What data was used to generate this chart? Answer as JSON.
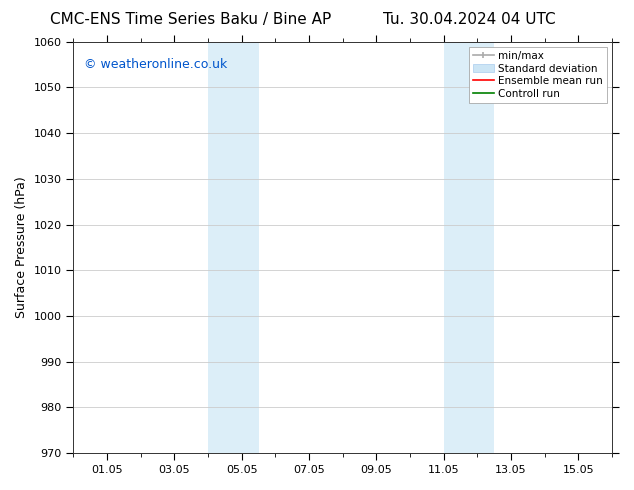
{
  "title_left": "CMC-ENS Time Series Baku / Bine AP",
  "title_right": "Tu. 30.04.2024 04 UTC",
  "ylabel": "Surface Pressure (hPa)",
  "ylim": [
    970,
    1060
  ],
  "yticks": [
    970,
    980,
    990,
    1000,
    1010,
    1020,
    1030,
    1040,
    1050,
    1060
  ],
  "xtick_labels": [
    "01.05",
    "03.05",
    "05.05",
    "07.05",
    "09.05",
    "11.05",
    "13.05",
    "15.05"
  ],
  "xtick_positions": [
    1,
    3,
    5,
    7,
    9,
    11,
    13,
    15
  ],
  "xlim": [
    0,
    16
  ],
  "shaded_bands": [
    {
      "x_start": 4.0,
      "x_end": 5.5,
      "color": "#dceef8"
    },
    {
      "x_start": 11.0,
      "x_end": 12.5,
      "color": "#dceef8"
    }
  ],
  "watermark_text": "© weatheronline.co.uk",
  "watermark_color": "#0055cc",
  "watermark_fontsize": 9,
  "bg_color": "#ffffff",
  "plot_bg_color": "#ffffff",
  "grid_color": "#cccccc",
  "title_fontsize": 11,
  "axis_fontsize": 9,
  "tick_fontsize": 8
}
